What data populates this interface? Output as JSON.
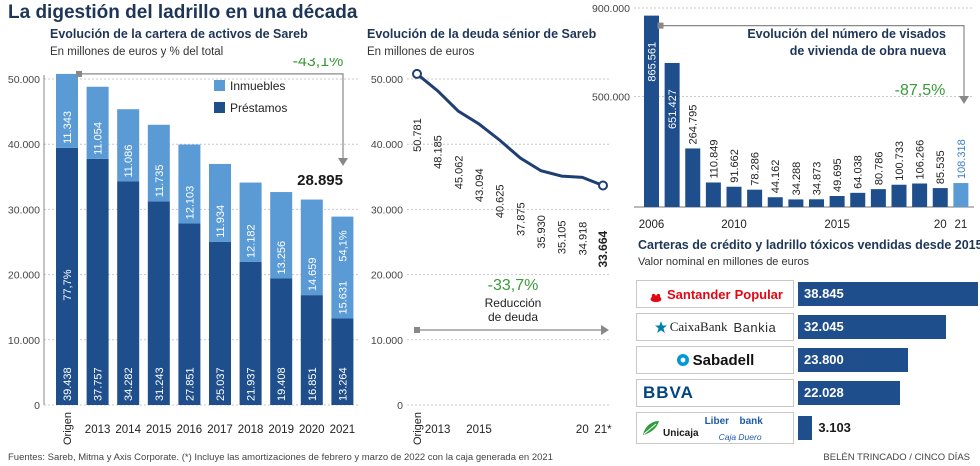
{
  "header": {
    "title": "La digestión del ladrillo en una década"
  },
  "panels": {
    "assets": {
      "title": "Evolución de la cartera de activos de Sareb",
      "subtitle": "En millones de euros y % del total",
      "change_label": "-43,1%",
      "final_total": "28.895",
      "share_top": "54,1%",
      "share_bottom": "77,7%"
    },
    "debt": {
      "title": "Evolución de la deuda sénior de Sareb",
      "subtitle": "En millones de euros",
      "change_label": "-33,7%",
      "change_note_1": "Reducción",
      "change_note_2": "de deuda"
    },
    "permits": {
      "title_1": "Evolución del número de visados",
      "title_2": "de vivienda de obra nueva",
      "change_label": "-87,5%"
    },
    "sales": {
      "title": "Carteras de crédito y ladrillo tóxicos vendidas desde 2015",
      "subtitle": "Valor nominal en millones de euros"
    }
  },
  "chart_data": [
    {
      "type": "bar",
      "stacked": true,
      "categories": [
        "Origen",
        "2013",
        "2014",
        "2015",
        "2016",
        "2017",
        "2018",
        "2019",
        "2020",
        "2021"
      ],
      "series": [
        {
          "name": "Préstamos",
          "color": "#1f4e8c",
          "values": [
            39438,
            37757,
            34282,
            31243,
            27851,
            25037,
            21937,
            19408,
            16851,
            13264
          ],
          "labels": [
            "39.438",
            "37.757",
            "34.282",
            "31.243",
            "27.851",
            "25.037",
            "21.937",
            "19.408",
            "16.851",
            "13.264"
          ]
        },
        {
          "name": "Inmuebles",
          "color": "#5b9bd5",
          "values": [
            11343,
            11054,
            11086,
            11735,
            12103,
            11934,
            12182,
            13256,
            14659,
            15631
          ],
          "labels": [
            "11.343",
            "11.054",
            "11.086",
            "11.735",
            "12.103",
            "11.934",
            "12.182",
            "13.256",
            "14.659",
            "15.631"
          ]
        }
      ],
      "ylim": [
        0,
        50000
      ],
      "yticks": [
        "0",
        "10.000",
        "20.000",
        "30.000",
        "40.000",
        "50.000"
      ],
      "grid": true,
      "legend": "top-right"
    },
    {
      "type": "line",
      "x": [
        "Origen",
        "2013",
        "2014",
        "2015",
        "2016",
        "2017",
        "2018",
        "2019",
        "2020",
        "2021*"
      ],
      "xtick_labels": [
        "Origen",
        "2013",
        "",
        "2015",
        "",
        "",
        "",
        "",
        "20",
        "21*"
      ],
      "series": [
        {
          "name": "Deuda sénior",
          "color": "#1f3f73",
          "values": [
            50781,
            48185,
            45062,
            43094,
            40625,
            37875,
            35930,
            35105,
            34918,
            33664
          ],
          "labels": [
            "50.781",
            "48.185",
            "45.062",
            "43.094",
            "40.625",
            "37.875",
            "35.930",
            "35.105",
            "34.918",
            "33.664"
          ]
        }
      ],
      "ylim": [
        0,
        50000
      ],
      "yticks": [
        "0",
        "10.000",
        "20.000",
        "30.000",
        "40.000",
        "50.000"
      ],
      "grid": true
    },
    {
      "type": "bar",
      "categories": [
        "2006",
        "2007",
        "2008",
        "2009",
        "2010",
        "2011",
        "2012",
        "2013",
        "2014",
        "2015",
        "2016",
        "2017",
        "2018",
        "2019",
        "2020",
        "2021"
      ],
      "xtick_labels": [
        "2006",
        "",
        "",
        "",
        "2010",
        "",
        "",
        "",
        "",
        "2015",
        "",
        "",
        "",
        "",
        "20",
        "21"
      ],
      "series": [
        {
          "name": "Visados",
          "color": "#1f4e8c",
          "highlight_color": "#5b9bd5",
          "values": [
            865561,
            651427,
            264795,
            110849,
            91662,
            78286,
            44162,
            34288,
            34873,
            49695,
            64038,
            80786,
            100733,
            106266,
            85535,
            108318
          ],
          "labels": [
            "865.561",
            "651.427",
            "264.795",
            "110.849",
            "91.662",
            "78.286",
            "44.162",
            "34.288",
            "34.873",
            "49.695",
            "64.038",
            "80.786",
            "100.733",
            "106.266",
            "85.535",
            "108.318"
          ]
        }
      ],
      "ylim": [
        0,
        900000
      ],
      "yticks": [
        "500.000",
        "900.000"
      ],
      "grid": true
    },
    {
      "type": "bar",
      "orientation": "horizontal",
      "categories": [
        "Santander Popular",
        "CaixaBank Bankia",
        "Sabadell",
        "BBVA",
        "Unicaja Liberbank Caja Duero"
      ],
      "values": [
        38845,
        32045,
        23800,
        22028,
        3103
      ],
      "labels": [
        "38.845",
        "32.045",
        "23.800",
        "22.028",
        "3.103"
      ],
      "color": "#1f4e8c"
    }
  ],
  "banks": [
    {
      "id": "santander",
      "name": "Santander",
      "name2": "Popular",
      "color": "#e30613"
    },
    {
      "id": "caixabank",
      "name": "CaixaBank",
      "name2": "Bankia",
      "color": "#007eae"
    },
    {
      "id": "sabadell",
      "name": "Sabadell",
      "color": "#0099d8"
    },
    {
      "id": "bbva",
      "name": "BBVA",
      "color": "#004481"
    },
    {
      "id": "unicaja",
      "name": "Unicaja",
      "name2": "Liber",
      "name3": "bank",
      "name4": "Caja Duero",
      "color": "#2e9c3c",
      "color2": "#1d5aa8"
    }
  ],
  "footer": {
    "source": "Fuentes: Sareb, Mitma y Axis Corporate. (*) Incluye las amortizaciones de febrero y marzo de 2022 con la caja generada en 2021",
    "credit": "BELÉN TRINCADO / CINCO DÍAS"
  }
}
